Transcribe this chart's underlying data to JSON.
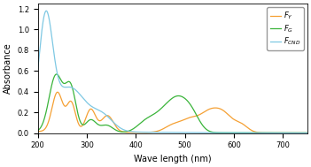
{
  "xlabel": "Wave length (nm)",
  "ylabel": "Absorbance",
  "xlim": [
    200,
    750
  ],
  "ylim": [
    0.0,
    1.25
  ],
  "yticks": [
    0.0,
    0.2,
    0.4,
    0.6,
    0.8,
    1.0,
    1.2
  ],
  "xticks": [
    200,
    300,
    400,
    500,
    600,
    700
  ],
  "legend_labels": [
    "$F_Y$",
    "$F_G$",
    "$F_{CND}$"
  ],
  "color_FY": "#f5a033",
  "color_FG": "#3ab43a",
  "color_FCND": "#7ec8e3",
  "figsize": [
    3.51,
    1.89
  ],
  "dpi": 100
}
